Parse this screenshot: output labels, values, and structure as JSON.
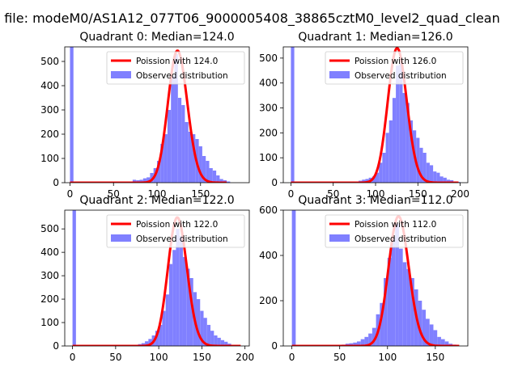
{
  "suptitle": "n file: modeM0/AS1A12_077T06_9000005408_38865cztM0_level2_quad_clean",
  "colors": {
    "hist": "#8080ff",
    "poisson": "#ff0000"
  },
  "chart_data": [
    {
      "type": "bar",
      "title": "Quadrant 0: Median=124.0",
      "median": 124.0,
      "total": 3800,
      "xlim": [
        -6,
        206
      ],
      "ylim": [
        0,
        560
      ],
      "xticks": [
        0,
        50,
        100,
        150
      ],
      "yticks": [
        0,
        100,
        200,
        300,
        400,
        500
      ],
      "legend_position": "upper right",
      "series": [
        {
          "name": "Poission with 124.0",
          "kind": "line",
          "x_range": [
            0,
            180
          ]
        },
        {
          "name": "Observed distribution",
          "kind": "hist",
          "bin_width": 4,
          "bins": [
            [
              0,
              560
            ],
            [
              72,
              12
            ],
            [
              76,
              10
            ],
            [
              80,
              12
            ],
            [
              84,
              18
            ],
            [
              88,
              22
            ],
            [
              92,
              40
            ],
            [
              96,
              60
            ],
            [
              100,
              90
            ],
            [
              104,
              160
            ],
            [
              108,
              200
            ],
            [
              112,
              300
            ],
            [
              116,
              440
            ],
            [
              120,
              530
            ],
            [
              124,
              350
            ],
            [
              128,
              320
            ],
            [
              132,
              250
            ],
            [
              136,
              210
            ],
            [
              140,
              200
            ],
            [
              144,
              180
            ],
            [
              148,
              150
            ],
            [
              152,
              110
            ],
            [
              156,
              90
            ],
            [
              160,
              60
            ],
            [
              164,
              50
            ],
            [
              168,
              30
            ],
            [
              172,
              15
            ],
            [
              176,
              10
            ],
            [
              180,
              5
            ]
          ]
        }
      ]
    },
    {
      "type": "bar",
      "title": "Quadrant 1: Median=126.0",
      "median": 126.0,
      "total": 3800,
      "xlim": [
        -9,
        209
      ],
      "ylim": [
        0,
        545
      ],
      "xticks": [
        0,
        50,
        100,
        150,
        200
      ],
      "yticks": [
        0,
        100,
        200,
        300,
        400,
        500
      ],
      "legend_position": "upper right",
      "series": [
        {
          "name": "Poission with 126.0",
          "kind": "line",
          "x_range": [
            0,
            198
          ]
        },
        {
          "name": "Observed distribution",
          "kind": "hist",
          "bin_width": 4,
          "bins": [
            [
              0,
              545
            ],
            [
              76,
              4
            ],
            [
              80,
              8
            ],
            [
              84,
              12
            ],
            [
              88,
              15
            ],
            [
              92,
              20
            ],
            [
              96,
              25
            ],
            [
              100,
              40
            ],
            [
              104,
              80
            ],
            [
              108,
              120
            ],
            [
              112,
              200
            ],
            [
              116,
              250
            ],
            [
              120,
              340
            ],
            [
              124,
              470
            ],
            [
              128,
              480
            ],
            [
              132,
              360
            ],
            [
              136,
              320
            ],
            [
              140,
              250
            ],
            [
              144,
              210
            ],
            [
              148,
              180
            ],
            [
              152,
              140
            ],
            [
              156,
              120
            ],
            [
              160,
              80
            ],
            [
              164,
              70
            ],
            [
              168,
              45
            ],
            [
              172,
              40
            ],
            [
              176,
              25
            ],
            [
              180,
              20
            ],
            [
              184,
              12
            ],
            [
              188,
              10
            ],
            [
              192,
              5
            ],
            [
              196,
              3
            ]
          ]
        }
      ]
    },
    {
      "type": "bar",
      "title": "Quadrant 2: Median=122.0",
      "median": 122.0,
      "total": 3800,
      "xlim": [
        -9,
        205
      ],
      "ylim": [
        0,
        580
      ],
      "xticks": [
        0,
        50,
        100,
        150,
        200
      ],
      "yticks": [
        0,
        100,
        200,
        300,
        400,
        500
      ],
      "legend_position": "upper right",
      "series": [
        {
          "name": "Poission with 122.0",
          "kind": "line",
          "x_range": [
            0,
            195
          ]
        },
        {
          "name": "Observed distribution",
          "kind": "hist",
          "bin_width": 4,
          "bins": [
            [
              0,
              580
            ],
            [
              72,
              5
            ],
            [
              76,
              8
            ],
            [
              80,
              12
            ],
            [
              84,
              20
            ],
            [
              88,
              30
            ],
            [
              92,
              45
            ],
            [
              96,
              65
            ],
            [
              100,
              90
            ],
            [
              104,
              150
            ],
            [
              108,
              220
            ],
            [
              112,
              350
            ],
            [
              116,
              410
            ],
            [
              120,
              500
            ],
            [
              124,
              470
            ],
            [
              128,
              380
            ],
            [
              132,
              330
            ],
            [
              136,
              290
            ],
            [
              140,
              230
            ],
            [
              144,
              200
            ],
            [
              148,
              150
            ],
            [
              152,
              120
            ],
            [
              156,
              90
            ],
            [
              160,
              65
            ],
            [
              164,
              45
            ],
            [
              168,
              35
            ],
            [
              172,
              25
            ],
            [
              176,
              18
            ],
            [
              180,
              10
            ],
            [
              184,
              5
            ],
            [
              188,
              3
            ]
          ]
        }
      ]
    },
    {
      "type": "bar",
      "title": "Quadrant 3: Median=112.0",
      "median": 112.0,
      "total": 3800,
      "xlim": [
        -9,
        184
      ],
      "ylim": [
        0,
        600
      ],
      "xticks": [
        0,
        50,
        100,
        150
      ],
      "yticks": [
        0,
        200,
        400,
        600
      ],
      "legend_position": "upper right",
      "series": [
        {
          "name": "Poission with 112.0",
          "kind": "line",
          "x_range": [
            0,
            175
          ]
        },
        {
          "name": "Observed distribution",
          "kind": "hist",
          "bin_width": 4,
          "bins": [
            [
              0,
              600
            ],
            [
              48,
              4
            ],
            [
              52,
              6
            ],
            [
              56,
              10
            ],
            [
              60,
              12
            ],
            [
              64,
              15
            ],
            [
              68,
              20
            ],
            [
              72,
              30
            ],
            [
              76,
              40
            ],
            [
              80,
              55
            ],
            [
              84,
              80
            ],
            [
              88,
              140
            ],
            [
              92,
              190
            ],
            [
              96,
              300
            ],
            [
              100,
              390
            ],
            [
              104,
              480
            ],
            [
              108,
              540
            ],
            [
              112,
              430
            ],
            [
              116,
              370
            ],
            [
              120,
              340
            ],
            [
              124,
              300
            ],
            [
              128,
              250
            ],
            [
              132,
              200
            ],
            [
              136,
              160
            ],
            [
              140,
              120
            ],
            [
              144,
              95
            ],
            [
              148,
              70
            ],
            [
              152,
              40
            ],
            [
              156,
              30
            ],
            [
              160,
              20
            ],
            [
              164,
              10
            ],
            [
              168,
              6
            ]
          ]
        }
      ]
    }
  ]
}
